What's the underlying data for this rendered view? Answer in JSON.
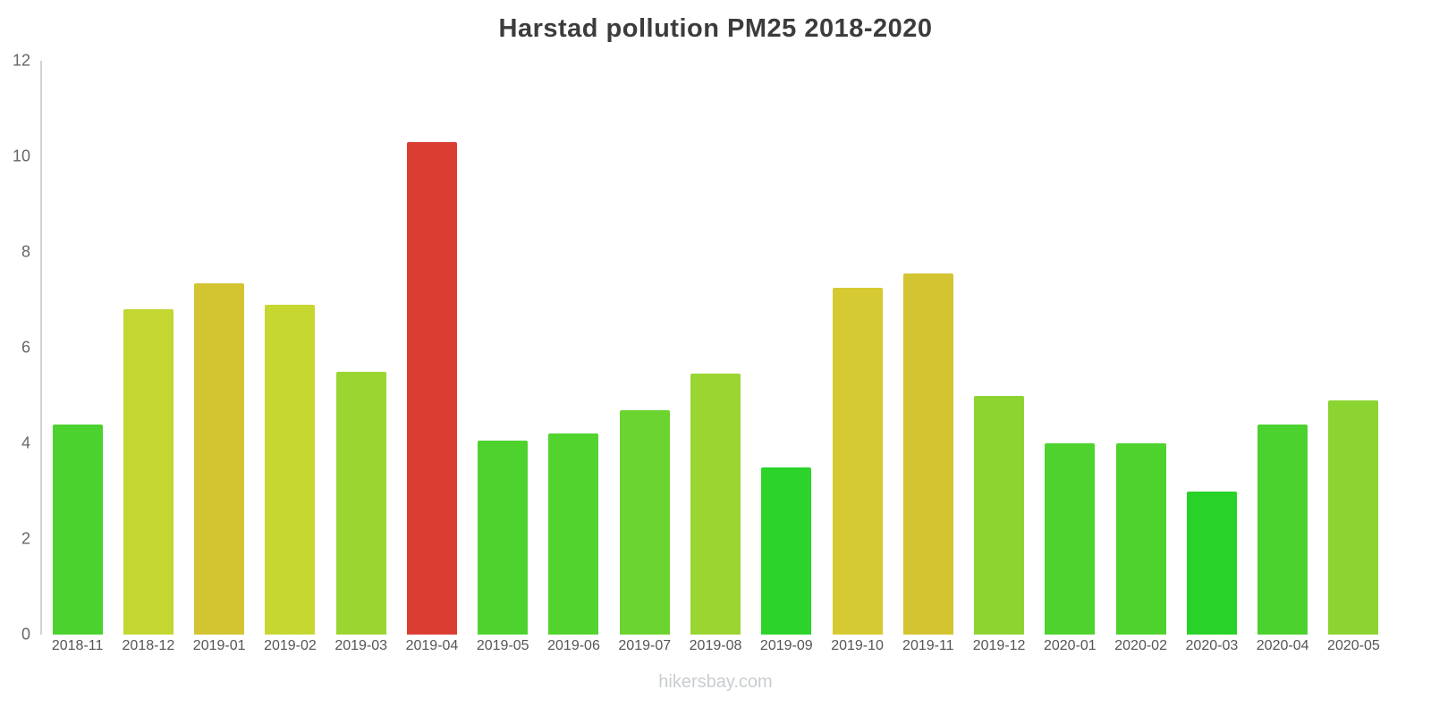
{
  "title": "Harstad pollution PM25 2018-2020",
  "watermark": "hikersbay.com",
  "chart_data": {
    "type": "bar",
    "title": "Harstad pollution PM25 2018-2020",
    "xlabel": "",
    "ylabel": "",
    "ylim": [
      0,
      12
    ],
    "yticks": [
      0,
      2,
      4,
      6,
      8,
      10,
      12
    ],
    "grid": false,
    "legend": "none",
    "categories": [
      "2018-11",
      "2018-12",
      "2019-01",
      "2019-02",
      "2019-03",
      "2019-04",
      "2019-05",
      "2019-06",
      "2019-07",
      "2019-08",
      "2019-09",
      "2019-10",
      "2019-11",
      "2019-12",
      "2020-01",
      "2020-02",
      "2020-03",
      "2020-04",
      "2020-05"
    ],
    "values": [
      4.4,
      6.8,
      7.35,
      6.9,
      5.5,
      10.3,
      4.05,
      4.2,
      4.7,
      5.45,
      3.5,
      7.25,
      7.55,
      5.0,
      4.0,
      4.0,
      3.0,
      4.4,
      4.9
    ],
    "colors": [
      "#4bd22e",
      "#c3d631",
      "#d3c431",
      "#c6d731",
      "#9bd531",
      "#dc3d33",
      "#4ed32e",
      "#53d32e",
      "#6cd430",
      "#9ad531",
      "#2bd32b",
      "#d5ca32",
      "#d4c431",
      "#8ed431",
      "#4ed32e",
      "#4ed32e",
      "#29d229",
      "#4bd22e",
      "#8bd431"
    ]
  }
}
